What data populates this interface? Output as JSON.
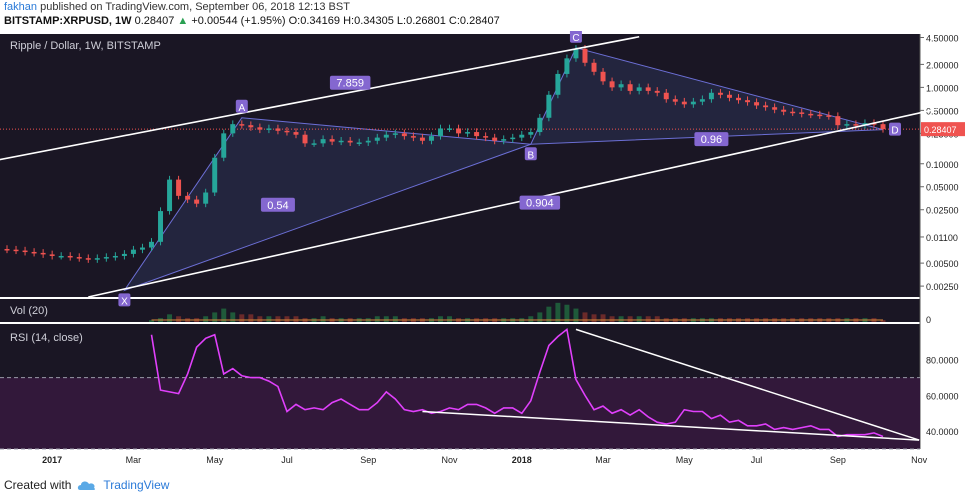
{
  "header": {
    "username": "fakhan",
    "published_text": "published on TradingView.com, September 06, 2018 12:13 BST",
    "symbol": "BITSTAMP:XRPUSD, 1W",
    "last": "0.28407",
    "change": "+0.00544 (+1.95%)",
    "o_label": "O:",
    "o_value": "0.34169",
    "h_label": "H:",
    "h_value": "0.34305",
    "l_label": "L:",
    "l_value": "0.26801",
    "c_label": "C:",
    "c_value": "0.28407",
    "up_color": "#2aa052"
  },
  "footer": {
    "created_with": "Created with",
    "brand": "TradingView"
  },
  "chart_data": [
    {
      "type": "candlestick",
      "title": "Ripple / Dollar, 1W, BITSTAMP",
      "scale": "log",
      "ylim": [
        0.0018,
        5.0
      ],
      "y_ticks": [
        4.5,
        2.0,
        1.0,
        0.5,
        0.25,
        0.1,
        0.05,
        0.025,
        0.011,
        0.005,
        0.0025
      ],
      "y_tick_labels": [
        "4.50000",
        "2.00000",
        "1.00000",
        "0.50000",
        "0.25000",
        "0.10000",
        "0.05000",
        "0.02500",
        "0.01100",
        "0.00500",
        "0.00250"
      ],
      "last_price_label": "0.28407",
      "up_color": "#26a69a",
      "down_color": "#ef5350",
      "weekly_close": [
        0.0075,
        0.0073,
        0.007,
        0.0068,
        0.0065,
        0.0062,
        0.0062,
        0.006,
        0.0058,
        0.0056,
        0.0058,
        0.006,
        0.0062,
        0.0066,
        0.0075,
        0.008,
        0.0095,
        0.024,
        0.062,
        0.038,
        0.034,
        0.03,
        0.042,
        0.12,
        0.25,
        0.33,
        0.32,
        0.3,
        0.28,
        0.29,
        0.27,
        0.26,
        0.24,
        0.185,
        0.185,
        0.21,
        0.195,
        0.2,
        0.19,
        0.19,
        0.2,
        0.22,
        0.24,
        0.25,
        0.23,
        0.22,
        0.2,
        0.23,
        0.29,
        0.29,
        0.25,
        0.26,
        0.23,
        0.22,
        0.2,
        0.21,
        0.22,
        0.24,
        0.26,
        0.4,
        0.8,
        1.5,
        2.4,
        3.2,
        2.1,
        1.6,
        1.2,
        1.0,
        1.1,
        0.9,
        1.0,
        0.9,
        0.85,
        0.7,
        0.65,
        0.6,
        0.65,
        0.7,
        0.85,
        0.8,
        0.73,
        0.68,
        0.64,
        0.58,
        0.55,
        0.51,
        0.48,
        0.47,
        0.45,
        0.44,
        0.43,
        0.42,
        0.32,
        0.33,
        0.32,
        0.34,
        0.33,
        0.284
      ],
      "annotations": [
        {
          "label": "X",
          "x_index": 13,
          "price": 0.0022,
          "placement": "below"
        },
        {
          "label": "A",
          "x_index": 26,
          "price": 0.4,
          "placement": "above"
        },
        {
          "label": "B",
          "x_index": 58,
          "price": 0.18,
          "placement": "below"
        },
        {
          "label": "C",
          "x_index": 63,
          "price": 3.3,
          "placement": "above"
        },
        {
          "label": "D",
          "x_index": 97,
          "price": 0.28,
          "placement": "right"
        }
      ],
      "ratios": [
        {
          "label": "0.54",
          "x_index": 30,
          "price": 0.029
        },
        {
          "label": "7.859",
          "x_index": 38,
          "price": 1.15
        },
        {
          "label": "0.904",
          "x_index": 59,
          "price": 0.031
        },
        {
          "label": "0.96",
          "x_index": 78,
          "price": 0.21
        }
      ],
      "trendlines": [
        {
          "from": {
            "x_index": -7,
            "price": 0.082
          },
          "to": {
            "x_index": 70,
            "price": 4.6
          }
        },
        {
          "from": {
            "x_index": 9,
            "price": 0.0018
          },
          "to": {
            "x_index": 103,
            "price": 0.52
          }
        }
      ]
    },
    {
      "type": "bar",
      "title": "Vol (20)",
      "y_tick_labels": [
        "0"
      ],
      "volume": [
        0,
        0,
        0,
        0,
        0,
        0,
        0,
        0,
        0,
        0,
        0,
        0,
        0,
        0,
        0,
        0,
        1,
        2,
        4,
        3,
        2,
        2,
        3,
        5,
        7,
        5,
        4,
        4,
        3,
        3,
        3,
        3,
        3,
        2,
        2,
        3,
        2,
        2,
        2,
        2,
        2,
        3,
        3,
        3,
        2,
        2,
        2,
        2,
        3,
        3,
        2,
        2,
        2,
        2,
        2,
        2,
        2,
        2,
        3,
        5,
        8,
        10,
        9,
        7,
        5,
        4,
        4,
        3,
        3,
        3,
        3,
        3,
        3,
        2,
        2,
        2,
        2,
        2,
        2,
        2,
        2,
        2,
        2,
        2,
        2,
        2,
        2,
        2,
        2,
        2,
        2,
        2,
        2,
        2,
        2,
        2,
        2,
        1
      ]
    },
    {
      "type": "line",
      "title": "RSI (14, close)",
      "ylim": [
        30,
        100
      ],
      "y_ticks": [
        80,
        60,
        40
      ],
      "y_tick_labels": [
        "80.0000",
        "60.0000",
        "40.0000"
      ],
      "bands": [
        30,
        70
      ],
      "line_color": "#e040fb",
      "values": [
        null,
        null,
        null,
        null,
        null,
        null,
        null,
        null,
        null,
        null,
        null,
        null,
        null,
        null,
        null,
        null,
        94,
        63,
        62,
        61,
        72,
        87,
        92,
        94,
        72,
        75,
        71,
        70,
        70,
        68,
        65,
        51,
        55,
        52,
        53,
        52,
        56,
        58,
        55,
        52,
        52,
        56,
        62,
        58,
        52,
        51,
        52,
        50,
        51,
        53,
        52,
        55,
        55,
        53,
        50,
        53,
        53,
        50,
        57,
        73,
        88,
        93,
        97,
        69,
        60,
        52,
        54,
        50,
        52,
        49,
        52,
        48,
        45,
        44,
        45,
        52,
        51,
        51,
        47,
        49,
        45,
        46,
        43,
        43,
        44,
        41,
        42,
        41,
        42,
        43,
        41,
        41,
        37,
        38,
        38,
        38,
        39,
        37
      ],
      "trendlines": [
        {
          "from": {
            "x_index": 46,
            "value": 51
          },
          "to": {
            "x_index": 101,
            "value": 35
          }
        },
        {
          "from": {
            "x_index": 63,
            "value": 97
          },
          "to": {
            "x_index": 101,
            "value": 35
          }
        }
      ]
    }
  ],
  "x_axis": {
    "labels": [
      "2017",
      "Mar",
      "May",
      "Jul",
      "Sep",
      "Nov",
      "2018",
      "Mar",
      "May",
      "Jul",
      "Sep",
      "Nov"
    ],
    "label_index": [
      5,
      14,
      23,
      31,
      40,
      49,
      57,
      66,
      75,
      83,
      92,
      101
    ]
  },
  "colors": {
    "background": "#1a1624",
    "rsi_band": "#32183a",
    "label_box": "#8467d0"
  }
}
